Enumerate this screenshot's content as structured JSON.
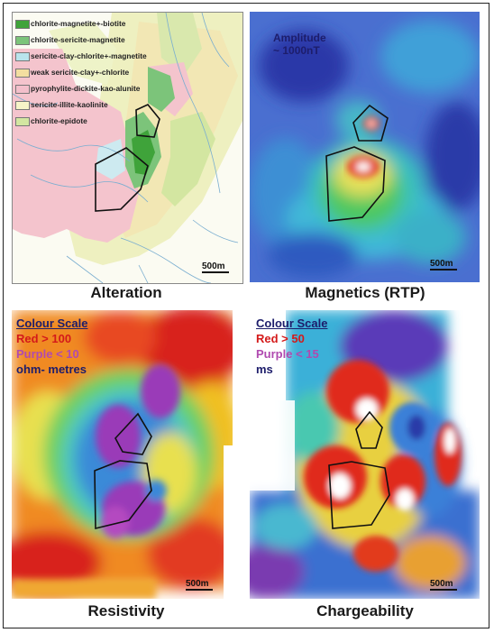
{
  "panels": {
    "alteration": {
      "caption": "Alteration",
      "scale_label": "500m",
      "legend": [
        {
          "label": "chlorite-magnetite+-biotite",
          "color": "#3fa33a"
        },
        {
          "label": "chlorite-sericite-magnetite",
          "color": "#7cc47a"
        },
        {
          "label": "sericite-clay-chlorite+-magnetite",
          "color": "#b9e4ec"
        },
        {
          "label": "weak sericite-clay+-chlorite",
          "color": "#f3dea0"
        },
        {
          "label": "pyrophylite-dickite-kao-alunite",
          "color": "#f3bfcb"
        },
        {
          "label": "sericite-illite-kaolinite",
          "color": "#f6f4c8"
        },
        {
          "label": "chlorite-epidote",
          "color": "#d3e6a1"
        }
      ]
    },
    "magnetics": {
      "caption": "Magnetics (RTP)",
      "scale_label": "500m",
      "amplitude_line1": "Amplitude",
      "amplitude_line2": "~ 1000nT"
    },
    "resistivity": {
      "caption": "Resistivity",
      "scale_label": "500m",
      "colour_scale_title": "Colour Scale",
      "high_label": "Red > 100",
      "low_label": "Purple < 10",
      "unit_label": "ohm- metres"
    },
    "chargeability": {
      "caption": "Chargeability",
      "scale_label": "500m",
      "colour_scale_title": "Colour Scale",
      "high_label": "Red > 50",
      "low_label": "Purple < 15",
      "unit_label": "ms"
    }
  },
  "colors": {
    "red": "#d41a1a",
    "purple": "#b04ab0",
    "navy": "#1d1d6b"
  }
}
